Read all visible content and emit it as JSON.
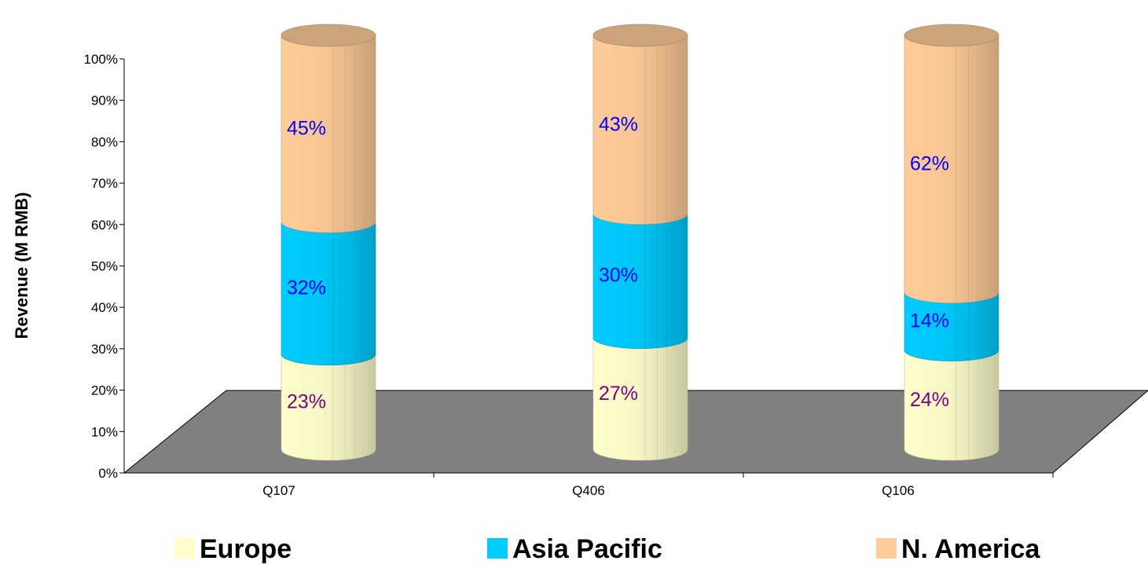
{
  "chart_data": {
    "type": "bar",
    "stacked": "percent",
    "style": "3d-cylinder",
    "categories": [
      "Q107",
      "Q406",
      "Q106"
    ],
    "series": [
      {
        "name": "Europe",
        "values": [
          23,
          27,
          24
        ],
        "color": "#FFFFCC",
        "label_color": "#800080"
      },
      {
        "name": "Asia Pacific",
        "values": [
          32,
          30,
          14
        ],
        "color": "#00CCFF",
        "label_color": "#0000FF"
      },
      {
        "name": "N. America",
        "values": [
          45,
          43,
          62
        ],
        "color": "#FFCC99",
        "label_color": "#0000FF"
      }
    ],
    "data_labels": [
      [
        "23%",
        "27%",
        "24%"
      ],
      [
        "32%",
        "30%",
        "14%"
      ],
      [
        "45%",
        "43%",
        "62%"
      ]
    ],
    "ylabel": "Revenue (M RMB)",
    "xlabel": "",
    "yticks": [
      "0%",
      "10%",
      "20%",
      "30%",
      "40%",
      "50%",
      "60%",
      "70%",
      "80%",
      "90%",
      "100%"
    ],
    "ylim": [
      0,
      100
    ],
    "floor_color": "#808080",
    "grid": false,
    "legend": {
      "position": "bottom",
      "entries": [
        "Europe",
        "Asia Pacific",
        "N. America"
      ]
    }
  }
}
